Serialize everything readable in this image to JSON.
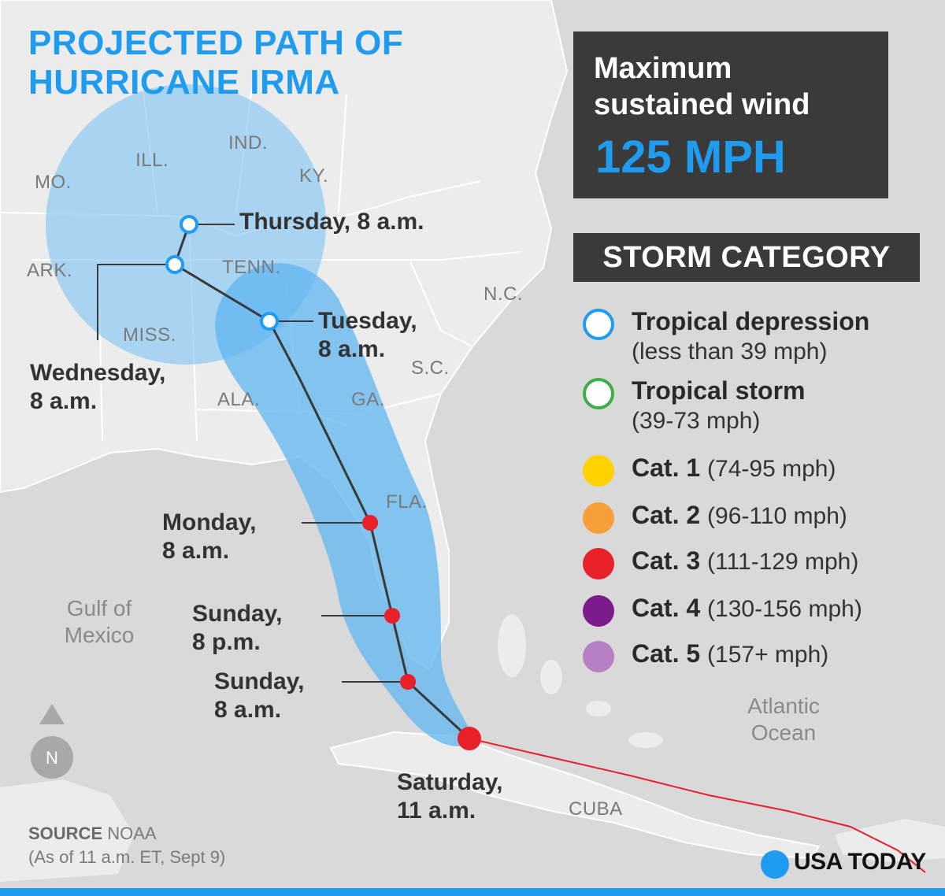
{
  "title": {
    "line1": "PROJECTED PATH OF",
    "line2": "HURRICANE IRMA"
  },
  "wind": {
    "label": "Maximum sustained wind",
    "value": "125 MPH"
  },
  "legend": {
    "title": "STORM CATEGORY",
    "items": [
      {
        "label": "Tropical depression",
        "range": "(less than 39 mph)",
        "color": "#1f9bf0",
        "style": "ring"
      },
      {
        "label": "Tropical storm",
        "range": "(39-73 mph)",
        "color": "#3fae49",
        "style": "ring"
      },
      {
        "label": "Cat. 1",
        "range": "(74-95 mph)",
        "color": "#ffd200",
        "style": "fill"
      },
      {
        "label": "Cat. 2",
        "range": "(96-110 mph)",
        "color": "#f7a03a",
        "style": "fill"
      },
      {
        "label": "Cat. 3",
        "range": "(111-129 mph)",
        "color": "#e8202a",
        "style": "fill"
      },
      {
        "label": "Cat. 4",
        "range": "(130-156 mph)",
        "color": "#7b1c8c",
        "style": "fill"
      },
      {
        "label": "Cat. 5",
        "range": "(157+ mph)",
        "color": "#b77fc4",
        "style": "fill"
      }
    ]
  },
  "track_points": {
    "thursday": {
      "line1": "Thursday, 8 a.m.",
      "category": "Tropical depression"
    },
    "wednesday": {
      "line1": "Wednesday,",
      "line2": "8 a.m.",
      "category": "Tropical depression"
    },
    "tuesday": {
      "line1": "Tuesday,",
      "line2": "8 a.m.",
      "category": "Tropical depression"
    },
    "monday": {
      "line1": "Monday,",
      "line2": "8 a.m.",
      "category": "Cat. 3"
    },
    "sunday_pm": {
      "line1": "Sunday,",
      "line2": "8 p.m.",
      "category": "Cat. 3"
    },
    "sunday_am": {
      "line1": "Sunday,",
      "line2": "8 a.m.",
      "category": "Cat. 3"
    },
    "saturday": {
      "line1": "Saturday,",
      "line2": "11 a.m.",
      "category": "Cat. 3"
    }
  },
  "geo_labels": {
    "mo": "MO.",
    "ill": "ILL.",
    "ind": "IND.",
    "ky": "KY.",
    "ark": "ARK.",
    "tenn": "TENN.",
    "nc": "N.C.",
    "miss": "MISS.",
    "sc": "S.C.",
    "ala": "ALA.",
    "ga": "GA.",
    "fla": "FLA.",
    "cuba": "CUBA"
  },
  "water_labels": {
    "gulf_line1": "Gulf of",
    "gulf_line2": "Mexico",
    "atlantic_line1": "Atlantic",
    "atlantic_line2": "Ocean"
  },
  "compass": {
    "letter": "N"
  },
  "source": {
    "label": "SOURCE",
    "name": "NOAA",
    "note": "(As of 11 a.m. ET, Sept 9)"
  },
  "brand": "USA TODAY",
  "colors": {
    "accent": "#1f9bf0",
    "land": "#e9e9e9",
    "water": "#d9d9d9",
    "cone": "#7cc4f5",
    "track": "#3a3a3a",
    "past_track": "#e8202a"
  }
}
